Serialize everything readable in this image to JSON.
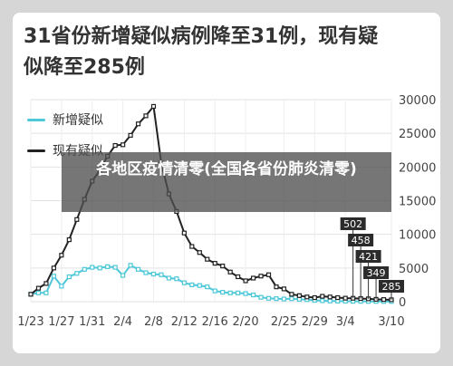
{
  "title": "31省份新增疑似病例降至31例，现有疑似降至285例",
  "overlay_caption": "各地区疫情清零(全国各省份肺炎清零)",
  "colors": {
    "new": "#4ec8d8",
    "existing": "#222222"
  },
  "chart_data": {
    "type": "line",
    "series": [
      {
        "name": "新增疑似",
        "x": [
          "1/23",
          "1/24",
          "1/25",
          "1/26",
          "1/27",
          "1/28",
          "1/29",
          "1/30",
          "1/31",
          "2/1",
          "2/2",
          "2/3",
          "2/4",
          "2/5",
          "2/6",
          "2/7",
          "2/8",
          "2/9",
          "2/10",
          "2/11",
          "2/12",
          "2/13",
          "2/14",
          "2/15",
          "2/16",
          "2/17",
          "2/18",
          "2/19",
          "2/20",
          "2/21",
          "2/22",
          "2/23",
          "2/24",
          "2/25",
          "2/26",
          "2/27",
          "2/28",
          "2/29",
          "3/1",
          "3/2",
          "3/3",
          "3/4",
          "3/5",
          "3/6",
          "3/7",
          "3/8",
          "3/9",
          "3/10"
        ],
        "values": [
          1100,
          1300,
          1300,
          3800,
          2300,
          3700,
          4200,
          4800,
          5100,
          5000,
          5200,
          5100,
          3900,
          5400,
          4800,
          4300,
          4100,
          4000,
          3500,
          3400,
          2800,
          2500,
          2400,
          2200,
          1600,
          1400,
          1300,
          1300,
          1200,
          1000,
          650,
          500,
          450,
          400,
          450,
          350,
          300,
          200,
          150,
          100,
          80,
          70,
          60,
          50,
          40,
          40,
          30,
          31
        ]
      },
      {
        "name": "现有疑似",
        "x": [
          "1/23",
          "1/24",
          "1/25",
          "1/26",
          "1/27",
          "1/28",
          "1/29",
          "1/30",
          "1/31",
          "2/1",
          "2/2",
          "2/3",
          "2/4",
          "2/5",
          "2/6",
          "2/7",
          "2/8",
          "2/9",
          "2/10",
          "2/11",
          "2/12",
          "2/13",
          "2/14",
          "2/15",
          "2/16",
          "2/17",
          "2/18",
          "2/19",
          "2/20",
          "2/21",
          "2/22",
          "2/23",
          "2/24",
          "2/25",
          "2/26",
          "2/27",
          "2/28",
          "2/29",
          "3/1",
          "3/2",
          "3/3",
          "3/4",
          "3/5",
          "3/6",
          "3/7",
          "3/8",
          "3/9",
          "3/10"
        ],
        "values": [
          1100,
          2000,
          2700,
          5000,
          6900,
          9200,
          12200,
          15200,
          17900,
          19500,
          21600,
          23200,
          23300,
          24700,
          26400,
          27600,
          29000,
          20600,
          16000,
          13400,
          10200,
          8200,
          7300,
          6300,
          5700,
          5300,
          4400,
          3700,
          3100,
          3500,
          3800,
          4000,
          2200,
          1900,
          1100,
          900,
          700,
          600,
          800,
          700,
          600,
          520,
          502,
          458,
          421,
          349,
          320,
          285
        ]
      }
    ],
    "x_tick_labels": [
      "1/23",
      "1/27",
      "1/31",
      "2/4",
      "2/8",
      "2/12",
      "2/16",
      "2/20",
      "2/25",
      "2/29",
      "3/4",
      "3/10"
    ],
    "y_ticks": [
      0,
      5000,
      10000,
      15000,
      20000,
      25000,
      30000
    ],
    "ylim": [
      0,
      30000
    ],
    "y_axis_side": "right",
    "legend_position": "top-left",
    "grid": true,
    "annotations": [
      {
        "label": "502",
        "index": 42
      },
      {
        "label": "458",
        "index": 43
      },
      {
        "label": "421",
        "index": 44
      },
      {
        "label": "349",
        "index": 45
      },
      {
        "label": "285",
        "index": 47
      }
    ]
  }
}
